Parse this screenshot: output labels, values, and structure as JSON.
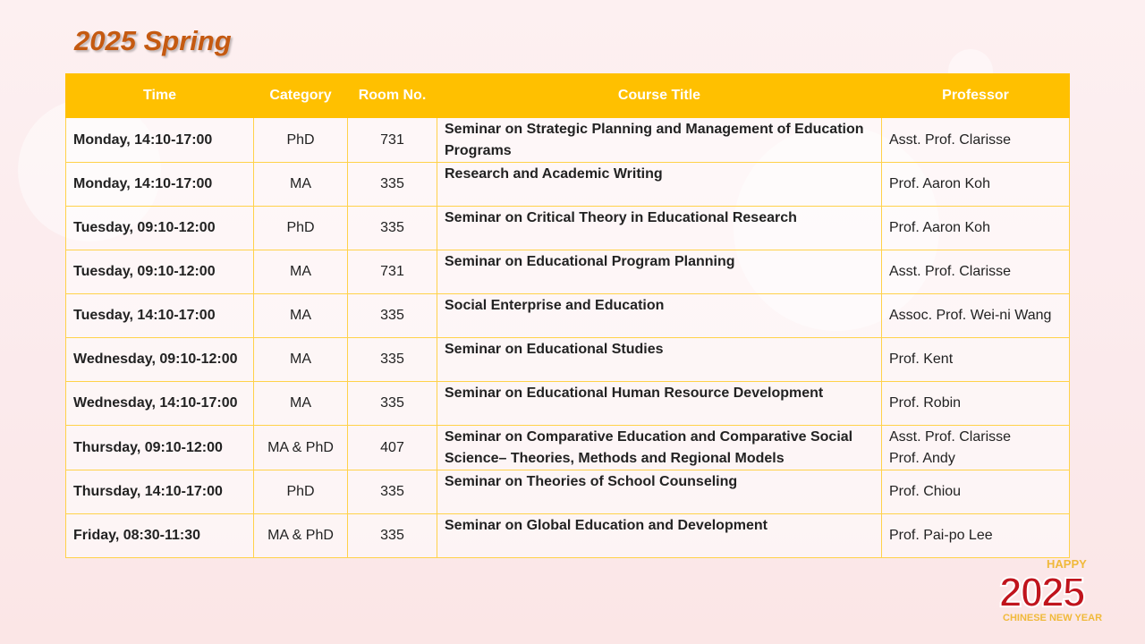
{
  "header": {
    "title": "2025 Spring"
  },
  "table": {
    "headers": [
      "Time",
      "Category",
      "Room No.",
      "Course Title",
      "Professor"
    ],
    "rows": [
      [
        "Monday, 14:10-17:00",
        "PhD",
        "731",
        "Seminar on Strategic Planning and Management of Education Programs",
        "Asst. Prof. Clarisse"
      ],
      [
        "Monday, 14:10-17:00",
        "MA",
        "335",
        "Research and Academic Writing",
        "Prof. Aaron Koh"
      ],
      [
        "Tuesday, 09:10-12:00",
        "PhD",
        "335",
        "Seminar on Critical Theory in Educational Research",
        "Prof. Aaron Koh"
      ],
      [
        "Tuesday, 09:10-12:00",
        "MA",
        "731",
        "Seminar on Educational Program Planning",
        "Asst. Prof. Clarisse"
      ],
      [
        "Tuesday, 14:10-17:00",
        "MA",
        "335",
        "Social Enterprise and Education",
        "Assoc. Prof. Wei-ni Wang"
      ],
      [
        "Wednesday, 09:10-12:00",
        "MA",
        "335",
        "Seminar on Educational Studies",
        "Prof. Kent"
      ],
      [
        "Wednesday, 14:10-17:00",
        "MA",
        "335",
        "Seminar on Educational Human Resource Development",
        "Prof. Robin"
      ],
      [
        "Thursday, 09:10-12:00",
        "MA & PhD",
        "407",
        "Seminar on Comparative Education and Comparative Social Science– Theories, Methods and Regional Models",
        [
          "Asst. Prof. Clarisse",
          "Prof. Andy"
        ]
      ],
      [
        "Thursday, 14:10-17:00",
        "PhD",
        "335",
        "Seminar on Theories of School Counseling",
        "Prof. Chiou"
      ],
      [
        "Friday, 08:30-11:30",
        "MA & PhD",
        "335",
        "Seminar on Global Education and Development",
        "Prof. Pai-po Lee"
      ]
    ]
  },
  "badge": {
    "top": "HAPPY",
    "year": "2025",
    "bottom": "CHINESE NEW YEAR"
  }
}
